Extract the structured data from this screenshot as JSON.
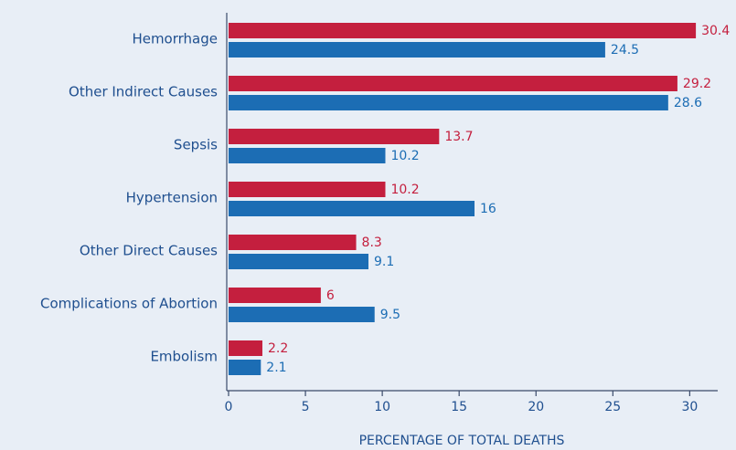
{
  "chart_data": {
    "type": "hbar",
    "categories": [
      "Hemorrhage",
      "Other Indirect Causes",
      "Sepsis",
      "Hypertension",
      "Other Direct Causes",
      "Complications of Abortion",
      "Embolism"
    ],
    "series": [
      {
        "color": "#c41f3e",
        "values": [
          30.4,
          29.2,
          13.7,
          10.2,
          8.3,
          6,
          2.2
        ]
      },
      {
        "color": "#1c6db4",
        "values": [
          24.5,
          28.6,
          10.2,
          16,
          9.1,
          9.5,
          2.1
        ]
      }
    ],
    "xlabel": "PERCENTAGE OF TOTAL DEATHS",
    "xlim": [
      0,
      32
    ],
    "xticks": [
      0,
      5,
      10,
      15,
      20,
      25,
      30
    ]
  }
}
